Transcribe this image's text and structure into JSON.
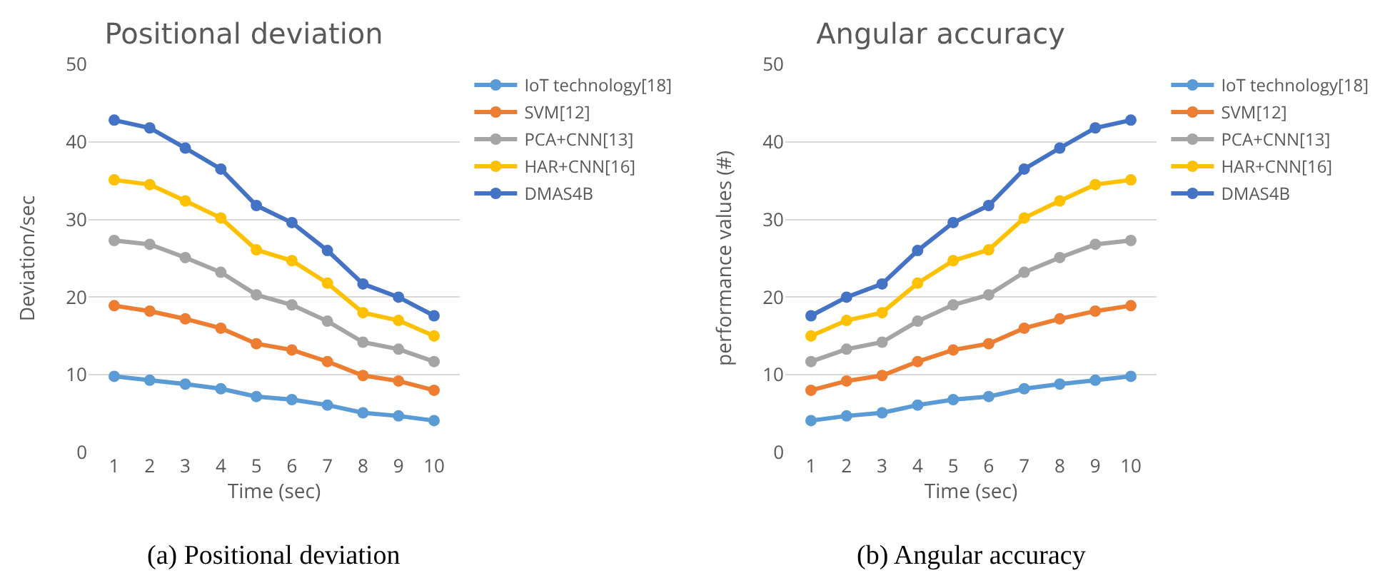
{
  "chart_data": [
    {
      "type": "line",
      "title": "Positional deviation",
      "xlabel": "Time (sec)",
      "ylabel": "Deviation/sec",
      "categories": [
        "1",
        "2",
        "3",
        "4",
        "5",
        "6",
        "7",
        "8",
        "9",
        "10"
      ],
      "series": [
        {
          "name": "IoT technology[18]",
          "color": "#5b9bd5",
          "values": [
            9.8,
            9.3,
            8.8,
            8.2,
            7.2,
            6.8,
            6.1,
            5.1,
            4.7,
            4.1
          ]
        },
        {
          "name": "SVM[12]",
          "color": "#ed7d31",
          "values": [
            18.9,
            18.2,
            17.2,
            16,
            14,
            13.2,
            11.7,
            9.9,
            9.2,
            8
          ]
        },
        {
          "name": "PCA+CNN[13]",
          "color": "#a5a5a5",
          "values": [
            27.3,
            26.8,
            25.1,
            23.2,
            20.3,
            19,
            16.9,
            14.2,
            13.3,
            11.7
          ]
        },
        {
          "name": "HAR+CNN[16]",
          "color": "#ffc000",
          "values": [
            35.1,
            34.5,
            32.4,
            30.2,
            26.1,
            24.7,
            21.8,
            18,
            17,
            15
          ]
        },
        {
          "name": "DMAS4B",
          "color": "#4472c4",
          "values": [
            42.8,
            41.8,
            39.2,
            36.5,
            31.8,
            29.6,
            26,
            21.7,
            20,
            17.6
          ]
        }
      ],
      "ylim": [
        0,
        50
      ],
      "yticks": [
        0,
        10,
        20,
        30,
        40,
        50
      ],
      "grid": "y",
      "legend": "right",
      "marker": "circle",
      "line_style": "solid",
      "annotations": [
        "(a) Positional deviation"
      ]
    },
    {
      "type": "line",
      "title": "Angular accuracy",
      "xlabel": "Time (sec)",
      "ylabel": "performance values (#)",
      "categories": [
        "1",
        "2",
        "3",
        "4",
        "5",
        "6",
        "7",
        "8",
        "9",
        "10"
      ],
      "series": [
        {
          "name": "IoT technology[18]",
          "color": "#5b9bd5",
          "values": [
            4.1,
            4.7,
            5.1,
            6.1,
            6.8,
            7.2,
            8.2,
            8.8,
            9.3,
            9.8
          ]
        },
        {
          "name": "SVM[12]",
          "color": "#ed7d31",
          "values": [
            8,
            9.2,
            9.9,
            11.7,
            13.2,
            14,
            16,
            17.2,
            18.2,
            18.9
          ]
        },
        {
          "name": "PCA+CNN[13]",
          "color": "#a5a5a5",
          "values": [
            11.7,
            13.3,
            14.2,
            16.9,
            19,
            20.3,
            23.2,
            25.1,
            26.8,
            27.3
          ]
        },
        {
          "name": "HAR+CNN[16]",
          "color": "#ffc000",
          "values": [
            15,
            17,
            18,
            21.8,
            24.7,
            26.1,
            30.2,
            32.4,
            34.5,
            35.1
          ]
        },
        {
          "name": "DMAS4B",
          "color": "#4472c4",
          "values": [
            17.6,
            20,
            21.7,
            26,
            29.6,
            31.8,
            36.5,
            39.2,
            41.8,
            42.8
          ]
        }
      ],
      "ylim": [
        0,
        50
      ],
      "yticks": [
        0,
        10,
        20,
        30,
        40,
        50
      ],
      "grid": "y",
      "legend": "right",
      "marker": "circle",
      "line_style": "solid",
      "annotations": [
        "(b) Angular accuracy"
      ]
    }
  ]
}
